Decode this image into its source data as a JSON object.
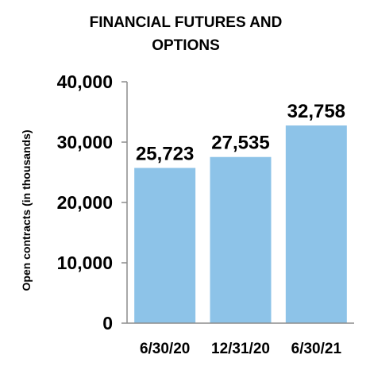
{
  "chart_data": {
    "type": "bar",
    "title_lines": [
      "FINANCIAL FUTURES AND",
      "OPTIONS"
    ],
    "ylabel": "Open contracts (in thousands)",
    "xlabel": "",
    "categories": [
      "6/30/20",
      "12/31/20",
      "6/30/21"
    ],
    "values": [
      25723,
      27535,
      32758
    ],
    "value_labels": [
      "25,723",
      "27,535",
      "32,758"
    ],
    "ylim": [
      0,
      40000
    ],
    "yticks": [
      0,
      10000,
      20000,
      30000,
      40000
    ],
    "ytick_labels": [
      "0",
      "10,000",
      "20,000",
      "30,000",
      "40,000"
    ],
    "bar_color": "#8DC3E8",
    "grid": false,
    "legend": "none"
  }
}
